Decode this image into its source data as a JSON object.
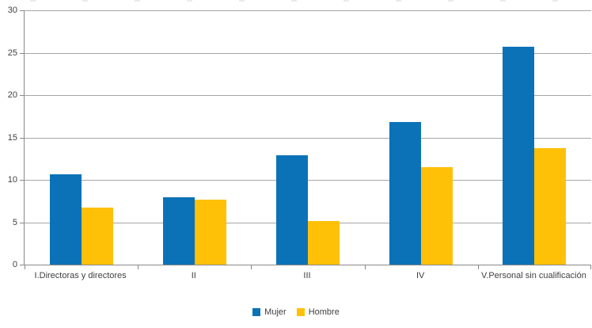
{
  "chart_data": {
    "type": "bar",
    "title": "",
    "xlabel": "",
    "ylabel": "",
    "categories": [
      "I.Directoras y directores",
      "II",
      "III",
      "IV",
      "V.Personal sin cualificación"
    ],
    "series": [
      {
        "name": "Mujer",
        "color": "#0b72b8",
        "values": [
          10.7,
          7.9,
          12.9,
          16.8,
          25.7
        ]
      },
      {
        "name": "Hombre",
        "color": "#ffc008",
        "values": [
          6.7,
          7.7,
          5.1,
          11.5,
          13.7
        ]
      }
    ],
    "ylim": [
      0,
      30
    ],
    "yticks": [
      0,
      5,
      10,
      15,
      20,
      25,
      30
    ],
    "grid": "horizontal",
    "legend_position": "bottom"
  },
  "colors": {
    "background": "#ffffff",
    "gridline": "#a6a6a6",
    "axis": "#898989",
    "text": "#3f3f3f"
  }
}
